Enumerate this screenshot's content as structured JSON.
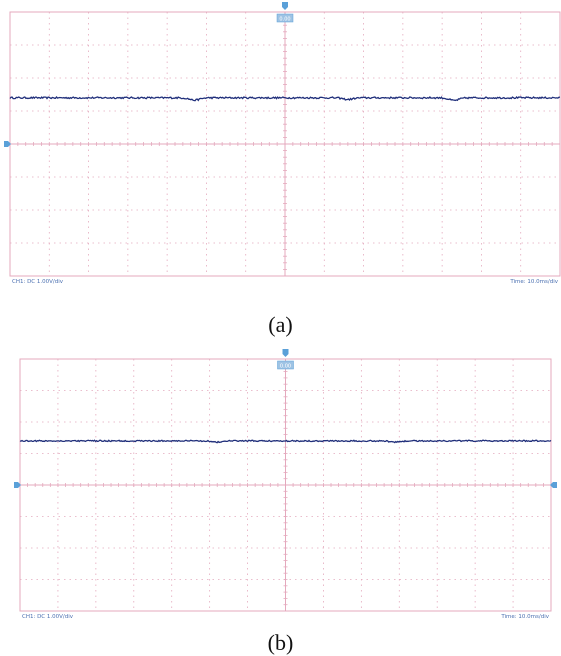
{
  "chart_data": [
    {
      "type": "line",
      "panel_label": "(a)",
      "channel_label": "CH1: DC 1.00V/div",
      "timebase_label": "Time: 10.0ms/div",
      "trigger_label": "0.00",
      "grid": true,
      "divisions": {
        "x": 14,
        "y": 8
      },
      "trace": {
        "level_div": 1.4,
        "noise_div": 0.025,
        "dips": [
          {
            "x_div": 4.7,
            "depth_div": 0.07
          },
          {
            "x_div": 8.6,
            "depth_div": 0.05
          },
          {
            "x_div": 11.3,
            "depth_div": 0.08
          }
        ]
      },
      "colors": {
        "grid": "#e4a9bd",
        "trace": "#1f2e7a",
        "marker": "#5aa0d8",
        "label": "#4a6fb0"
      }
    },
    {
      "type": "line",
      "panel_label": "(b)",
      "channel_label": "CH1: DC 1.00V/div",
      "timebase_label": "Time: 10.0ms/div",
      "trigger_label": "0.00",
      "grid": true,
      "divisions": {
        "x": 14,
        "y": 8
      },
      "trace": {
        "level_div": 1.4,
        "noise_div": 0.02,
        "dips": [
          {
            "x_div": 5.2,
            "depth_div": 0.04
          },
          {
            "x_div": 9.9,
            "depth_div": 0.04
          }
        ]
      },
      "colors": {
        "grid": "#e4a9bd",
        "trace": "#1f2e7a",
        "marker": "#5aa0d8",
        "label": "#4a6fb0"
      }
    }
  ]
}
